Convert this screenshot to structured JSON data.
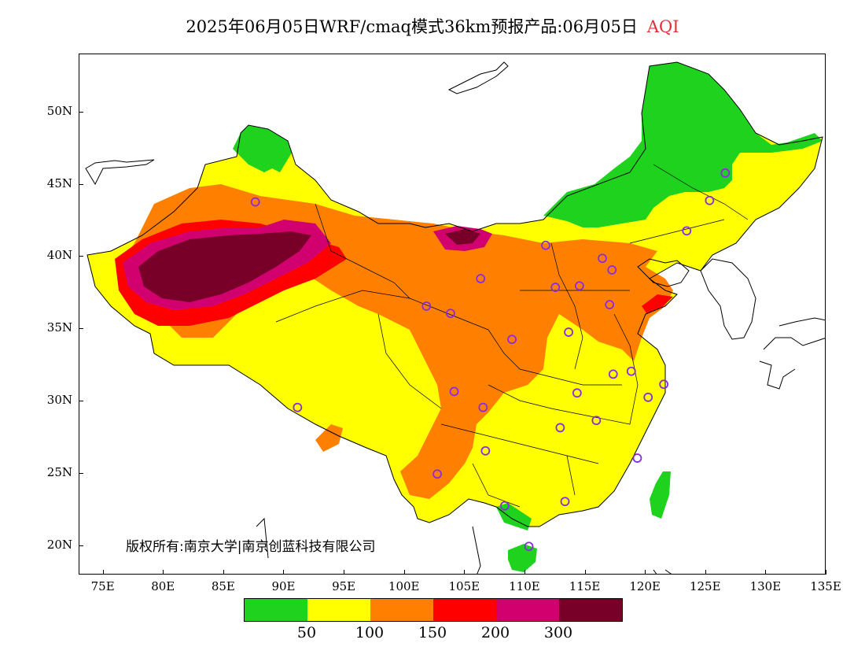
{
  "title": {
    "main": "2025年06月05日WRF/cmaq模式36km预报产品:06月05日",
    "variable": "AQI"
  },
  "axes": {
    "lat_labels": [
      "50N",
      "45N",
      "40N",
      "35N",
      "30N",
      "25N",
      "20N"
    ],
    "lat_values": [
      50,
      45,
      40,
      35,
      30,
      25,
      20
    ],
    "lon_labels": [
      "75E",
      "80E",
      "85E",
      "90E",
      "95E",
      "100E",
      "105E",
      "110E",
      "115E",
      "120E",
      "125E",
      "130E",
      "135E"
    ],
    "lon_values": [
      75,
      80,
      85,
      90,
      95,
      100,
      105,
      110,
      115,
      120,
      125,
      130,
      135
    ],
    "lon_range": [
      73,
      135
    ],
    "lat_range": [
      18,
      54
    ]
  },
  "copyright": "版权所有:南京大学|南京创蓝科技有限公司",
  "legend": {
    "colors": [
      "#1ed21e",
      "#ffff00",
      "#ff8000",
      "#ff0000",
      "#d2006e",
      "#780028"
    ],
    "labels": [
      "50",
      "100",
      "150",
      "200",
      "300"
    ]
  },
  "colors": {
    "good": "#1ed21e",
    "moderate": "#ffff00",
    "sensitive": "#ff8000",
    "unhealthy": "#ff0000",
    "very_unhealthy": "#d2006e",
    "hazardous": "#780028",
    "station_marker": "#8a2be2"
  },
  "stations": [
    {
      "lon": 87.6,
      "lat": 43.8
    },
    {
      "lon": 91.1,
      "lat": 29.6
    },
    {
      "lon": 101.8,
      "lat": 36.6
    },
    {
      "lon": 103.8,
      "lat": 36.1
    },
    {
      "lon": 106.3,
      "lat": 38.5
    },
    {
      "lon": 111.7,
      "lat": 40.8
    },
    {
      "lon": 112.5,
      "lat": 37.9
    },
    {
      "lon": 114.5,
      "lat": 38.0
    },
    {
      "lon": 116.4,
      "lat": 39.9
    },
    {
      "lon": 117.2,
      "lat": 39.1
    },
    {
      "lon": 117.0,
      "lat": 36.7
    },
    {
      "lon": 123.4,
      "lat": 41.8
    },
    {
      "lon": 125.3,
      "lat": 43.9
    },
    {
      "lon": 126.6,
      "lat": 45.8
    },
    {
      "lon": 108.9,
      "lat": 34.3
    },
    {
      "lon": 113.6,
      "lat": 34.8
    },
    {
      "lon": 104.1,
      "lat": 30.7
    },
    {
      "lon": 106.5,
      "lat": 29.6
    },
    {
      "lon": 106.7,
      "lat": 26.6
    },
    {
      "lon": 102.7,
      "lat": 25.0
    },
    {
      "lon": 108.3,
      "lat": 22.8
    },
    {
      "lon": 113.3,
      "lat": 23.1
    },
    {
      "lon": 110.3,
      "lat": 20.0
    },
    {
      "lon": 112.9,
      "lat": 28.2
    },
    {
      "lon": 114.3,
      "lat": 30.6
    },
    {
      "lon": 115.9,
      "lat": 28.7
    },
    {
      "lon": 117.3,
      "lat": 31.9
    },
    {
      "lon": 118.8,
      "lat": 32.1
    },
    {
      "lon": 120.2,
      "lat": 30.3
    },
    {
      "lon": 121.5,
      "lat": 31.2
    },
    {
      "lon": 119.3,
      "lat": 26.1
    }
  ]
}
